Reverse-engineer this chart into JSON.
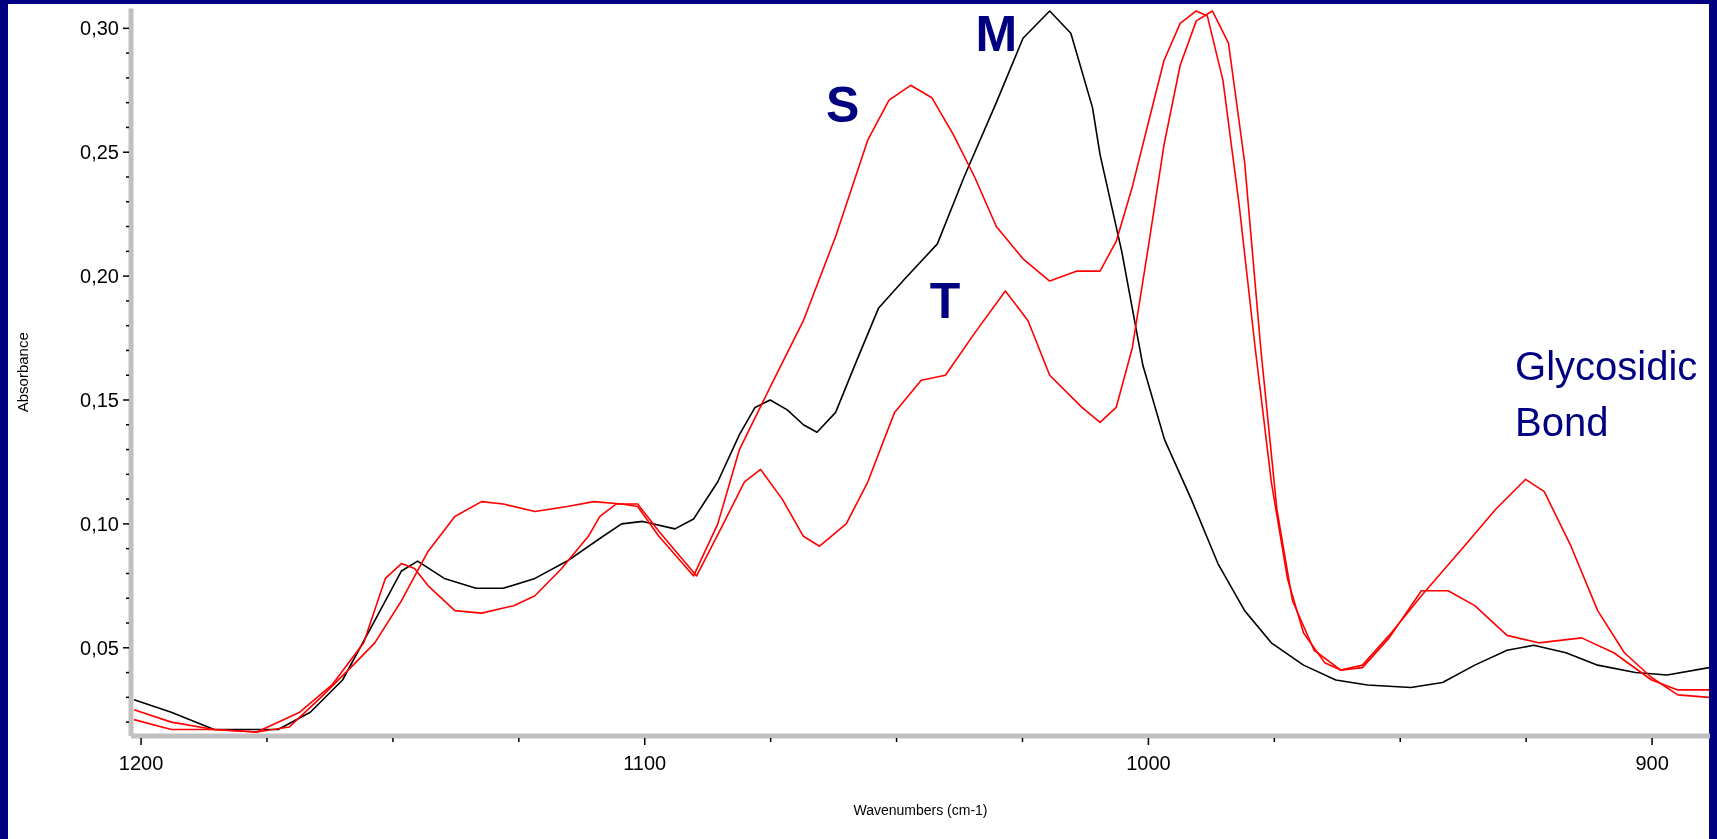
{
  "chart_data": {
    "type": "line",
    "xlabel": "Wavenumbers (cm-1)",
    "ylabel": "Absorbance",
    "xlim": [
      1202,
      888.5
    ],
    "ylim": [
      0.0144,
      0.308
    ],
    "xticks": [
      1200,
      {
        "value": 1175,
        "label": null
      },
      {
        "value": 1150,
        "label": null
      },
      {
        "value": 1125,
        "label": null
      },
      1100,
      {
        "value": 1075,
        "label": null
      },
      {
        "value": 1050,
        "label": null
      },
      {
        "value": 1025,
        "label": null
      },
      1000,
      {
        "value": 975,
        "label": null
      },
      {
        "value": 950,
        "label": null
      },
      {
        "value": 925,
        "label": null
      },
      900
    ],
    "yticks": [
      {
        "value": 0.02,
        "label": null
      },
      {
        "value": 0.03,
        "label": null
      },
      {
        "value": 0.04,
        "label": null
      },
      {
        "value": 0.05,
        "label": "0,05"
      },
      {
        "value": 0.06,
        "label": null
      },
      {
        "value": 0.07,
        "label": null
      },
      {
        "value": 0.08,
        "label": null
      },
      {
        "value": 0.09,
        "label": null
      },
      {
        "value": 0.1,
        "label": "0,10"
      },
      {
        "value": 0.11,
        "label": null
      },
      {
        "value": 0.12,
        "label": null
      },
      {
        "value": 0.13,
        "label": null
      },
      {
        "value": 0.14,
        "label": null
      },
      {
        "value": 0.15,
        "label": "0,15"
      },
      {
        "value": 0.16,
        "label": null
      },
      {
        "value": 0.17,
        "label": null
      },
      {
        "value": 0.18,
        "label": null
      },
      {
        "value": 0.19,
        "label": null
      },
      {
        "value": 0.2,
        "label": "0,20"
      },
      {
        "value": 0.21,
        "label": null
      },
      {
        "value": 0.22,
        "label": null
      },
      {
        "value": 0.23,
        "label": null
      },
      {
        "value": 0.24,
        "label": null
      },
      {
        "value": 0.25,
        "label": "0,25"
      },
      {
        "value": 0.26,
        "label": null
      },
      {
        "value": 0.27,
        "label": null
      },
      {
        "value": 0.28,
        "label": null
      },
      {
        "value": 0.29,
        "label": null
      },
      {
        "value": 0.3,
        "label": "0,30"
      }
    ],
    "grid": false,
    "marker": "none",
    "line_style": "solid",
    "annotations": [
      "Glycosidic Bond"
    ],
    "series": [
      {
        "name": "M",
        "color": "#000000",
        "x": [
          1201.4,
          1194.0,
          1185.5,
          1179.1,
          1172.8,
          1166.4,
          1160.0,
          1153.6,
          1148.3,
          1145.1,
          1139.8,
          1133.5,
          1128.1,
          1121.8,
          1115.4,
          1109.0,
          1104.6,
          1100.4,
          1094.0,
          1090.3,
          1085.5,
          1081.2,
          1078.1,
          1075.1,
          1071.7,
          1068.5,
          1065.8,
          1062.1,
          1057.9,
          1053.6,
          1048.3,
          1041.9,
          1036.6,
          1030.2,
          1024.9,
          1019.6,
          1015.4,
          1011.1,
          1009.6,
          1005.3,
          1001.1,
          996.8,
          991.5,
          986.2,
          980.9,
          975.6,
          969.2,
          962.8,
          956.5,
          947.9,
          941.6,
          935.2,
          928.8,
          923.5,
          917.1,
          910.8,
          903.3,
          897.0,
          888.7
        ],
        "values": [
          0.029,
          0.024,
          0.017,
          0.017,
          0.017,
          0.024,
          0.037,
          0.061,
          0.081,
          0.085,
          0.078,
          0.074,
          0.074,
          0.078,
          0.085,
          0.094,
          0.1,
          0.101,
          0.098,
          0.102,
          0.117,
          0.136,
          0.147,
          0.15,
          0.146,
          0.14,
          0.137,
          0.145,
          0.166,
          0.187,
          0.199,
          0.213,
          0.24,
          0.27,
          0.296,
          0.307,
          0.298,
          0.268,
          0.249,
          0.21,
          0.164,
          0.134,
          0.11,
          0.084,
          0.065,
          0.052,
          0.043,
          0.037,
          0.035,
          0.034,
          0.036,
          0.043,
          0.049,
          0.051,
          0.048,
          0.043,
          0.04,
          0.039,
          0.042
        ]
      },
      {
        "name": "S",
        "color": "#ff0000",
        "x": [
          1201.4,
          1194.0,
          1185.5,
          1177.0,
          1170.6,
          1164.3,
          1157.9,
          1153.6,
          1148.3,
          1143.0,
          1137.7,
          1132.4,
          1128.1,
          1121.8,
          1115.4,
          1110.1,
          1104.6,
          1101.4,
          1097.2,
          1090.3,
          1085.5,
          1081.2,
          1074.9,
          1068.5,
          1062.1,
          1055.7,
          1051.5,
          1047.2,
          1043.0,
          1038.7,
          1034.5,
          1030.2,
          1024.9,
          1019.6,
          1014.3,
          1009.6,
          1006.4,
          1003.2,
          1000.0,
          996.9,
          993.7,
          990.5,
          988.3,
          985.2,
          982.0,
          978.8,
          975.6,
          972.4,
          969.2,
          965.0,
          961.8,
          957.5,
          952.2,
          945.8,
          937.3,
          931.0,
          925.1,
          921.4,
          916.1,
          910.8,
          905.5,
          900.1,
          894.9,
          888.7
        ],
        "values": [
          0.025,
          0.02,
          0.017,
          0.016,
          0.018,
          0.03,
          0.043,
          0.052,
          0.069,
          0.089,
          0.103,
          0.109,
          0.108,
          0.105,
          0.107,
          0.109,
          0.108,
          0.107,
          0.095,
          0.079,
          0.1,
          0.13,
          0.156,
          0.182,
          0.216,
          0.255,
          0.271,
          0.277,
          0.272,
          0.257,
          0.24,
          0.22,
          0.207,
          0.198,
          0.202,
          0.202,
          0.214,
          0.236,
          0.262,
          0.287,
          0.302,
          0.307,
          0.305,
          0.279,
          0.229,
          0.171,
          0.117,
          0.078,
          0.056,
          0.044,
          0.041,
          0.043,
          0.055,
          0.071,
          0.091,
          0.106,
          0.118,
          0.113,
          0.091,
          0.065,
          0.048,
          0.038,
          0.031,
          0.03
        ]
      },
      {
        "name": "T",
        "color": "#ff0000",
        "x": [
          1201.4,
          1194.0,
          1185.5,
          1177.0,
          1168.5,
          1162.1,
          1155.8,
          1151.5,
          1148.3,
          1145.7,
          1143.0,
          1137.7,
          1132.4,
          1126.0,
          1121.8,
          1116.5,
          1111.2,
          1108.9,
          1105.7,
          1101.4,
          1097.2,
          1089.7,
          1084.4,
          1080.2,
          1077.0,
          1072.7,
          1068.5,
          1065.3,
          1060.0,
          1055.7,
          1050.4,
          1045.1,
          1040.3,
          1034.5,
          1028.4,
          1023.9,
          1019.6,
          1013.2,
          1009.6,
          1006.4,
          1003.2,
          1000.0,
          996.9,
          993.7,
          990.5,
          987.3,
          984.1,
          980.9,
          977.7,
          974.5,
          971.4,
          967.1,
          961.8,
          957.5,
          952.2,
          945.8,
          940.5,
          935.2,
          928.8,
          922.5,
          914.0,
          907.6,
          900.1,
          894.9,
          888.7
        ],
        "values": [
          0.021,
          0.017,
          0.017,
          0.016,
          0.024,
          0.035,
          0.052,
          0.078,
          0.084,
          0.082,
          0.075,
          0.065,
          0.064,
          0.067,
          0.071,
          0.082,
          0.095,
          0.103,
          0.108,
          0.108,
          0.097,
          0.079,
          0.1,
          0.117,
          0.122,
          0.11,
          0.095,
          0.091,
          0.1,
          0.117,
          0.145,
          0.158,
          0.16,
          0.177,
          0.194,
          0.182,
          0.16,
          0.147,
          0.141,
          0.147,
          0.171,
          0.212,
          0.253,
          0.285,
          0.303,
          0.307,
          0.294,
          0.246,
          0.171,
          0.106,
          0.069,
          0.049,
          0.041,
          0.042,
          0.054,
          0.073,
          0.073,
          0.067,
          0.055,
          0.052,
          0.054,
          0.048,
          0.037,
          0.033,
          0.033
        ]
      }
    ]
  }
}
